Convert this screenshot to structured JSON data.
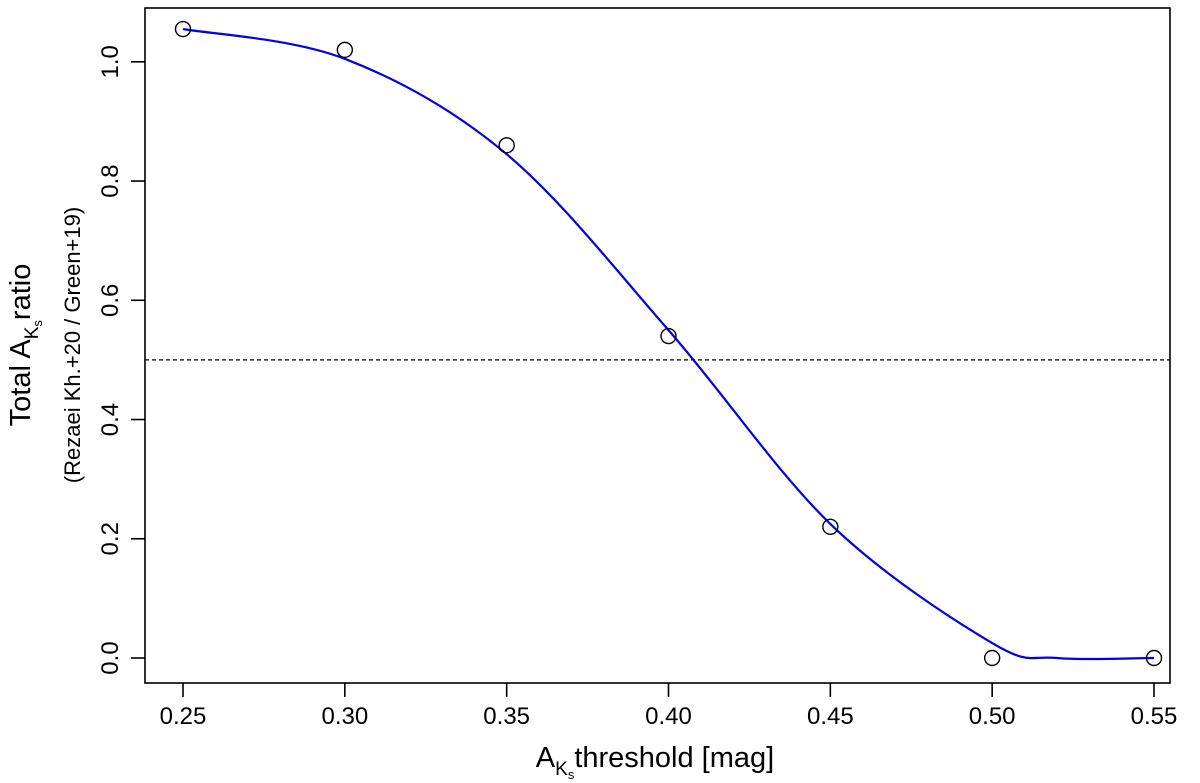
{
  "chart_data": {
    "type": "scatter",
    "xlabel": {
      "prefix": "A",
      "sub": "K",
      "subsub": "s",
      "suffix": "threshold [mag]"
    },
    "ylabel": {
      "prefix": "Total A",
      "sub": "K",
      "subsub": "s",
      "suffix": "ratio",
      "secondary": "(Rezaei Kh.+20 / Green+19)"
    },
    "xlim": [
      0.25,
      0.55
    ],
    "ylim": [
      0.0,
      1.05
    ],
    "xticks": [
      "0.25",
      "0.30",
      "0.35",
      "0.40",
      "0.45",
      "0.50",
      "0.55"
    ],
    "yticks": [
      "0.0",
      "0.2",
      "0.4",
      "0.6",
      "0.8",
      "1.0"
    ],
    "grid": false,
    "series": [
      {
        "kind": "points",
        "marker": "open-circle",
        "color": "#000000",
        "x": [
          0.25,
          0.3,
          0.35,
          0.4,
          0.45,
          0.5,
          0.55
        ],
        "y": [
          1.055,
          1.02,
          0.86,
          0.54,
          0.22,
          0.0,
          0.0
        ]
      },
      {
        "kind": "smooth-fit",
        "color": "#0000ee",
        "x": [
          0.25,
          0.3,
          0.35,
          0.4,
          0.45,
          0.5,
          0.52,
          0.55
        ],
        "y": [
          1.055,
          1.005,
          0.845,
          0.55,
          0.225,
          0.025,
          0.0,
          0.0
        ]
      }
    ],
    "reference_line": {
      "y": 0.5,
      "style": "dashed",
      "color": "#000000"
    }
  }
}
